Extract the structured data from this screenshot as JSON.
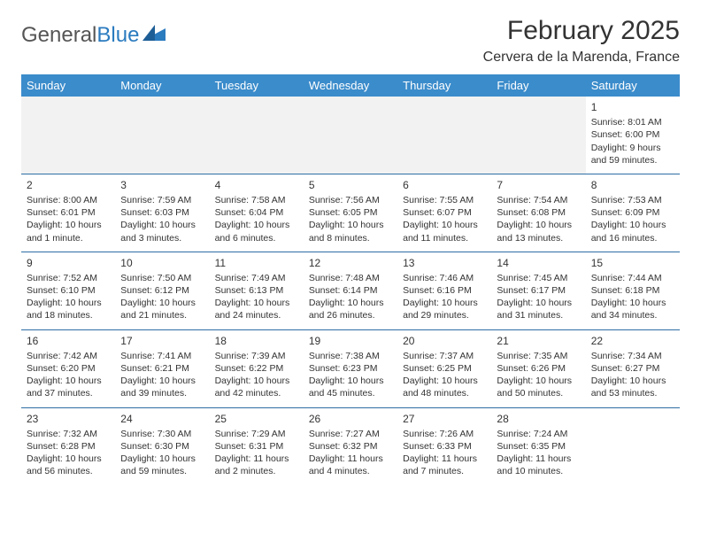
{
  "logo": {
    "part1": "General",
    "part2": "Blue"
  },
  "title": "February 2025",
  "location": "Cervera de la Marenda, France",
  "colors": {
    "header_bg": "#3b8ccb",
    "header_text": "#ffffff",
    "rule": "#2f6ea5",
    "empty_bg": "#f2f2f2",
    "text": "#333333",
    "logo_blue": "#2b7bbf"
  },
  "dayNames": [
    "Sunday",
    "Monday",
    "Tuesday",
    "Wednesday",
    "Thursday",
    "Friday",
    "Saturday"
  ],
  "weeks": [
    [
      null,
      null,
      null,
      null,
      null,
      null,
      {
        "n": "1",
        "sr": "Sunrise: 8:01 AM",
        "ss": "Sunset: 6:00 PM",
        "dl": "Daylight: 9 hours and 59 minutes."
      }
    ],
    [
      {
        "n": "2",
        "sr": "Sunrise: 8:00 AM",
        "ss": "Sunset: 6:01 PM",
        "dl": "Daylight: 10 hours and 1 minute."
      },
      {
        "n": "3",
        "sr": "Sunrise: 7:59 AM",
        "ss": "Sunset: 6:03 PM",
        "dl": "Daylight: 10 hours and 3 minutes."
      },
      {
        "n": "4",
        "sr": "Sunrise: 7:58 AM",
        "ss": "Sunset: 6:04 PM",
        "dl": "Daylight: 10 hours and 6 minutes."
      },
      {
        "n": "5",
        "sr": "Sunrise: 7:56 AM",
        "ss": "Sunset: 6:05 PM",
        "dl": "Daylight: 10 hours and 8 minutes."
      },
      {
        "n": "6",
        "sr": "Sunrise: 7:55 AM",
        "ss": "Sunset: 6:07 PM",
        "dl": "Daylight: 10 hours and 11 minutes."
      },
      {
        "n": "7",
        "sr": "Sunrise: 7:54 AM",
        "ss": "Sunset: 6:08 PM",
        "dl": "Daylight: 10 hours and 13 minutes."
      },
      {
        "n": "8",
        "sr": "Sunrise: 7:53 AM",
        "ss": "Sunset: 6:09 PM",
        "dl": "Daylight: 10 hours and 16 minutes."
      }
    ],
    [
      {
        "n": "9",
        "sr": "Sunrise: 7:52 AM",
        "ss": "Sunset: 6:10 PM",
        "dl": "Daylight: 10 hours and 18 minutes."
      },
      {
        "n": "10",
        "sr": "Sunrise: 7:50 AM",
        "ss": "Sunset: 6:12 PM",
        "dl": "Daylight: 10 hours and 21 minutes."
      },
      {
        "n": "11",
        "sr": "Sunrise: 7:49 AM",
        "ss": "Sunset: 6:13 PM",
        "dl": "Daylight: 10 hours and 24 minutes."
      },
      {
        "n": "12",
        "sr": "Sunrise: 7:48 AM",
        "ss": "Sunset: 6:14 PM",
        "dl": "Daylight: 10 hours and 26 minutes."
      },
      {
        "n": "13",
        "sr": "Sunrise: 7:46 AM",
        "ss": "Sunset: 6:16 PM",
        "dl": "Daylight: 10 hours and 29 minutes."
      },
      {
        "n": "14",
        "sr": "Sunrise: 7:45 AM",
        "ss": "Sunset: 6:17 PM",
        "dl": "Daylight: 10 hours and 31 minutes."
      },
      {
        "n": "15",
        "sr": "Sunrise: 7:44 AM",
        "ss": "Sunset: 6:18 PM",
        "dl": "Daylight: 10 hours and 34 minutes."
      }
    ],
    [
      {
        "n": "16",
        "sr": "Sunrise: 7:42 AM",
        "ss": "Sunset: 6:20 PM",
        "dl": "Daylight: 10 hours and 37 minutes."
      },
      {
        "n": "17",
        "sr": "Sunrise: 7:41 AM",
        "ss": "Sunset: 6:21 PM",
        "dl": "Daylight: 10 hours and 39 minutes."
      },
      {
        "n": "18",
        "sr": "Sunrise: 7:39 AM",
        "ss": "Sunset: 6:22 PM",
        "dl": "Daylight: 10 hours and 42 minutes."
      },
      {
        "n": "19",
        "sr": "Sunrise: 7:38 AM",
        "ss": "Sunset: 6:23 PM",
        "dl": "Daylight: 10 hours and 45 minutes."
      },
      {
        "n": "20",
        "sr": "Sunrise: 7:37 AM",
        "ss": "Sunset: 6:25 PM",
        "dl": "Daylight: 10 hours and 48 minutes."
      },
      {
        "n": "21",
        "sr": "Sunrise: 7:35 AM",
        "ss": "Sunset: 6:26 PM",
        "dl": "Daylight: 10 hours and 50 minutes."
      },
      {
        "n": "22",
        "sr": "Sunrise: 7:34 AM",
        "ss": "Sunset: 6:27 PM",
        "dl": "Daylight: 10 hours and 53 minutes."
      }
    ],
    [
      {
        "n": "23",
        "sr": "Sunrise: 7:32 AM",
        "ss": "Sunset: 6:28 PM",
        "dl": "Daylight: 10 hours and 56 minutes."
      },
      {
        "n": "24",
        "sr": "Sunrise: 7:30 AM",
        "ss": "Sunset: 6:30 PM",
        "dl": "Daylight: 10 hours and 59 minutes."
      },
      {
        "n": "25",
        "sr": "Sunrise: 7:29 AM",
        "ss": "Sunset: 6:31 PM",
        "dl": "Daylight: 11 hours and 2 minutes."
      },
      {
        "n": "26",
        "sr": "Sunrise: 7:27 AM",
        "ss": "Sunset: 6:32 PM",
        "dl": "Daylight: 11 hours and 4 minutes."
      },
      {
        "n": "27",
        "sr": "Sunrise: 7:26 AM",
        "ss": "Sunset: 6:33 PM",
        "dl": "Daylight: 11 hours and 7 minutes."
      },
      {
        "n": "28",
        "sr": "Sunrise: 7:24 AM",
        "ss": "Sunset: 6:35 PM",
        "dl": "Daylight: 11 hours and 10 minutes."
      },
      null
    ]
  ]
}
